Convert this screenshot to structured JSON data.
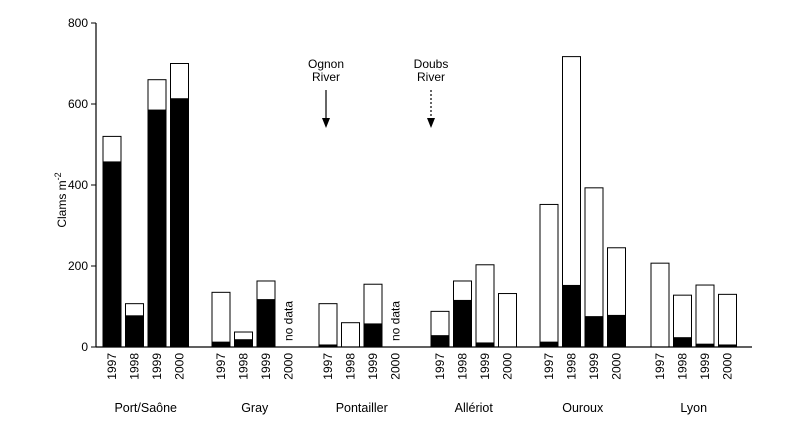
{
  "chart_data": {
    "type": "bar",
    "stacked_overlay": true,
    "ylabel_main": "Clams m",
    "ylabel_sup": "-2",
    "ylim": [
      0,
      800
    ],
    "yticks": [
      0,
      200,
      400,
      600,
      800
    ],
    "grid": false,
    "groups": [
      {
        "site": "Port/Saône",
        "years": [
          "1997",
          "1998",
          "1999",
          "2000"
        ],
        "total": [
          520,
          107,
          660,
          700
        ],
        "black": [
          457,
          77,
          585,
          613
        ],
        "no_data": []
      },
      {
        "site": "Gray",
        "years": [
          "1997",
          "1998",
          "1999",
          "2000"
        ],
        "total": [
          135,
          37,
          163,
          null
        ],
        "black": [
          12,
          18,
          117,
          null
        ],
        "no_data": [
          "2000"
        ]
      },
      {
        "site": "Pontailler",
        "years": [
          "1997",
          "1998",
          "1999",
          "2000"
        ],
        "total": [
          107,
          60,
          155,
          null
        ],
        "black": [
          5,
          0,
          57,
          null
        ],
        "no_data": [
          "2000"
        ]
      },
      {
        "site": "Allériot",
        "years": [
          "1997",
          "1998",
          "1999",
          "2000"
        ],
        "total": [
          88,
          163,
          203,
          132
        ],
        "black": [
          28,
          115,
          10,
          0
        ]
      },
      {
        "site": "Ouroux",
        "years": [
          "1997",
          "1998",
          "1999",
          "2000"
        ],
        "total": [
          352,
          717,
          393,
          245
        ],
        "black": [
          12,
          152,
          75,
          78
        ]
      },
      {
        "site": "Lyon",
        "years": [
          "1997",
          "1998",
          "1999",
          "2000"
        ],
        "total": [
          207,
          128,
          153,
          130
        ],
        "black": [
          0,
          23,
          7,
          5
        ]
      }
    ],
    "no_data_label": "no data",
    "annotations": [
      {
        "name": "ognon",
        "lines": [
          "Ognon",
          "River"
        ]
      },
      {
        "name": "doubs",
        "lines": [
          "Doubs",
          "River"
        ]
      }
    ]
  }
}
